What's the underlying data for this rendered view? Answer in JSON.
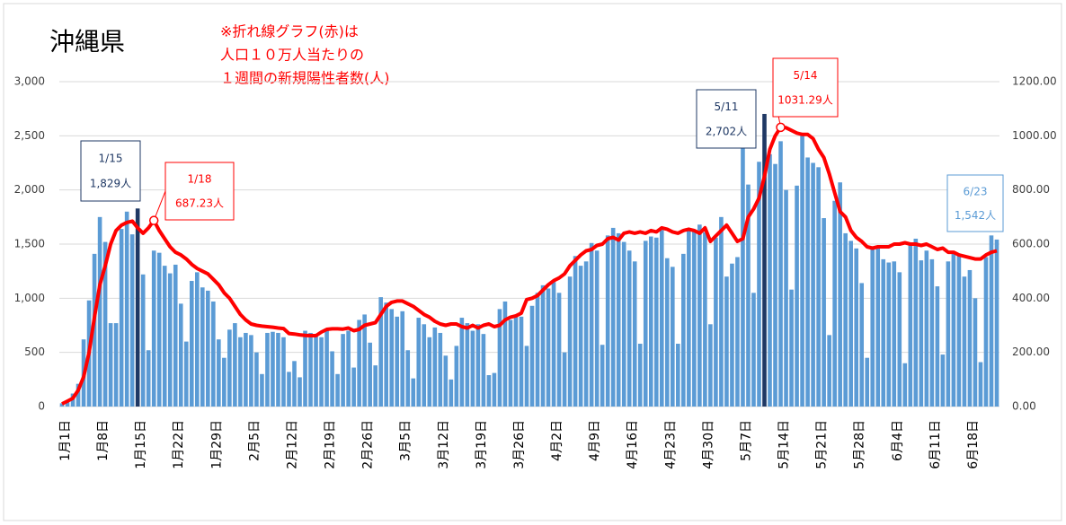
{
  "chart_data": {
    "type": "bar",
    "title": "沖縄県",
    "note": [
      "※折れ線グラフ(赤)は",
      "人口１０万人当たりの",
      "１週間の新規陽性者数(人)"
    ],
    "categories": [
      "1月1日",
      null,
      null,
      null,
      null,
      null,
      null,
      "1月8日",
      null,
      null,
      null,
      null,
      null,
      null,
      "1月15日",
      null,
      null,
      null,
      null,
      null,
      null,
      "1月22日",
      null,
      null,
      null,
      null,
      null,
      null,
      "1月29日",
      null,
      null,
      null,
      null,
      null,
      null,
      "2月5日",
      null,
      null,
      null,
      null,
      null,
      null,
      "2月12日",
      null,
      null,
      null,
      null,
      null,
      null,
      "2月19日",
      null,
      null,
      null,
      null,
      null,
      null,
      "2月26日",
      null,
      null,
      null,
      null,
      null,
      null,
      "3月5日",
      null,
      null,
      null,
      null,
      null,
      null,
      "3月12日",
      null,
      null,
      null,
      null,
      null,
      null,
      "3月19日",
      null,
      null,
      null,
      null,
      null,
      null,
      "3月26日",
      null,
      null,
      null,
      null,
      null,
      null,
      "4月2日",
      null,
      null,
      null,
      null,
      null,
      null,
      "4月9日",
      null,
      null,
      null,
      null,
      null,
      null,
      "4月16日",
      null,
      null,
      null,
      null,
      null,
      null,
      "4月23日",
      null,
      null,
      null,
      null,
      null,
      null,
      "4月30日",
      null,
      null,
      null,
      null,
      null,
      null,
      "5月7日",
      null,
      null,
      null,
      null,
      null,
      null,
      "5月14日",
      null,
      null,
      null,
      null,
      null,
      null,
      "5月21日",
      null,
      null,
      null,
      null,
      null,
      null,
      "5月28日",
      null,
      null,
      null,
      null,
      null,
      null,
      "6月4日",
      null,
      null,
      null,
      null,
      null,
      null,
      "6月11日",
      null,
      null,
      null,
      null,
      null,
      null,
      "6月18日",
      null,
      null,
      null,
      null,
      null
    ],
    "series": [
      {
        "color": "#5b9bd5",
        "highlight_color": "#1f3864",
        "values": [
          30,
          50,
          120,
          210,
          620,
          980,
          1410,
          1750,
          1520,
          770,
          770,
          1640,
          1800,
          1590,
          1829,
          1220,
          520,
          1440,
          1420,
          1300,
          1230,
          1310,
          950,
          600,
          1160,
          1240,
          1100,
          1070,
          970,
          620,
          450,
          710,
          770,
          640,
          680,
          660,
          500,
          300,
          680,
          690,
          680,
          640,
          320,
          420,
          270,
          700,
          680,
          660,
          640,
          720,
          510,
          300,
          670,
          700,
          360,
          800,
          850,
          590,
          380,
          1010,
          960,
          900,
          830,
          880,
          520,
          260,
          820,
          760,
          640,
          730,
          680,
          470,
          250,
          560,
          820,
          770,
          700,
          760,
          670,
          290,
          310,
          900,
          970,
          800,
          830,
          830,
          560,
          930,
          1050,
          1120,
          1090,
          1150,
          1050,
          500,
          1200,
          1390,
          1300,
          1340,
          1510,
          1440,
          570,
          1580,
          1650,
          1600,
          1520,
          1440,
          1340,
          580,
          1530,
          1570,
          1560,
          1630,
          1370,
          1290,
          580,
          1410,
          1620,
          1620,
          1680,
          1610,
          760,
          1560,
          1750,
          1200,
          1320,
          1380,
          2400,
          2050,
          1050,
          2260,
          2702,
          2330,
          2240,
          2450,
          2000,
          1080,
          2040,
          2500,
          2300,
          2250,
          2210,
          1740,
          660,
          1900,
          2070,
          1600,
          1530,
          1460,
          1140,
          450,
          1460,
          1460,
          1360,
          1330,
          1340,
          1240,
          400,
          1510,
          1550,
          1350,
          1440,
          1360,
          1110,
          480,
          1340,
          1420,
          1400,
          1200,
          1260,
          1000,
          410,
          1380,
          1580,
          1542
        ]
      },
      {
        "type": "line",
        "axis": "y2",
        "color": "#ff0000",
        "values": [
          10,
          20,
          30,
          60,
          110,
          200,
          330,
          450,
          520,
          600,
          650,
          670,
          680,
          685,
          660,
          640,
          660,
          687.23,
          650,
          620,
          590,
          570,
          560,
          545,
          525,
          510,
          500,
          490,
          470,
          450,
          420,
          400,
          370,
          340,
          320,
          305,
          300,
          297,
          295,
          293,
          290,
          288,
          270,
          268,
          265,
          263,
          262,
          262,
          275,
          285,
          287,
          287,
          286,
          290,
          280,
          285,
          300,
          305,
          310,
          340,
          370,
          385,
          390,
          390,
          380,
          370,
          355,
          340,
          330,
          315,
          305,
          300,
          305,
          305,
          295,
          290,
          300,
          290,
          300,
          305,
          295,
          300,
          320,
          330,
          335,
          345,
          395,
          400,
          410,
          430,
          450,
          465,
          475,
          490,
          520,
          540,
          560,
          575,
          580,
          595,
          600,
          620,
          625,
          615,
          640,
          645,
          640,
          645,
          640,
          650,
          645,
          660,
          655,
          645,
          640,
          650,
          655,
          650,
          640,
          660,
          610,
          630,
          650,
          670,
          640,
          610,
          620,
          700,
          730,
          770,
          850,
          950,
          1000,
          1031.29,
          1030,
          1020,
          1010,
          1005,
          1005,
          990,
          950,
          920,
          860,
          790,
          720,
          700,
          650,
          625,
          610,
          590,
          585,
          590,
          590,
          590,
          600,
          600,
          605,
          600,
          600,
          595,
          600,
          590,
          580,
          585,
          570,
          570,
          560,
          555,
          550,
          545,
          545,
          560,
          570,
          575
        ]
      }
    ],
    "annotations": [
      {
        "series": 0,
        "date": "1/15",
        "value": 1829,
        "label": "1,829人",
        "color": "#1f3864"
      },
      {
        "series": 1,
        "date": "1/18",
        "value": 687.23,
        "label": "687.23人",
        "color": "#ff0000"
      },
      {
        "series": 0,
        "date": "5/11",
        "value": 2702,
        "label": "2,702人",
        "color": "#1f3864"
      },
      {
        "series": 1,
        "date": "5/14",
        "value": 1031.29,
        "label": "1031.29人",
        "color": "#ff0000"
      },
      {
        "series": 0,
        "date": "6/23",
        "value": 1542,
        "label": "1,542人",
        "color": "#5b9bd5"
      }
    ],
    "ylim": [
      0,
      3000
    ],
    "yticks": [
      0,
      {
        "value": 500,
        "label": "500"
      },
      {
        "value": 1000,
        "label": "1,000"
      },
      {
        "value": 1500,
        "label": "1,500"
      },
      {
        "value": 2000,
        "label": "2,000"
      },
      {
        "value": 2500,
        "label": "2,500"
      },
      {
        "value": 3000,
        "label": "3,000"
      }
    ],
    "y2lim": [
      0,
      1200
    ],
    "y2ticks": [
      {
        "value": 0,
        "label": "0.00"
      },
      {
        "value": 200,
        "label": "200.00"
      },
      {
        "value": 400,
        "label": "400.00"
      },
      {
        "value": 600,
        "label": "600.00"
      },
      {
        "value": 800,
        "label": "800.00"
      },
      {
        "value": 1000,
        "label": "1000.00"
      },
      {
        "value": 1200,
        "label": "1200.00"
      }
    ],
    "grid": true
  }
}
